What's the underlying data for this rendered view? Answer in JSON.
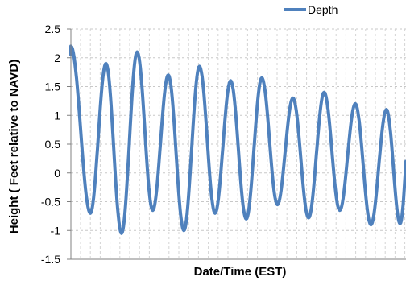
{
  "chart_data": {
    "type": "line",
    "xlabel": "Date/Time (EST)",
    "ylabel": "Height ( Feet relative to NAVD)",
    "ylim": [
      -1.5,
      2.5
    ],
    "yticks": [
      "2.5",
      "2",
      "1.5",
      "1",
      "0.5",
      "0",
      "-0.5",
      "-1",
      "-1.5"
    ],
    "grid": true,
    "legend_position": "top-right",
    "x_tick_labels_shown": false,
    "series": [
      {
        "name": "Depth",
        "color": "#4F81BD",
        "extrema": [
          [
            0.0,
            2.2
          ],
          [
            1.0,
            -0.7
          ],
          [
            1.8,
            1.9
          ],
          [
            2.6,
            -1.05
          ],
          [
            3.4,
            2.1
          ],
          [
            4.2,
            -0.65
          ],
          [
            5.0,
            1.7
          ],
          [
            5.8,
            -1.0
          ],
          [
            6.6,
            1.85
          ],
          [
            7.4,
            -0.7
          ],
          [
            8.2,
            1.6
          ],
          [
            9.0,
            -0.8
          ],
          [
            9.8,
            1.65
          ],
          [
            10.6,
            -0.55
          ],
          [
            11.4,
            1.3
          ],
          [
            12.2,
            -0.78
          ],
          [
            13.0,
            1.4
          ],
          [
            13.8,
            -0.65
          ],
          [
            14.6,
            1.2
          ],
          [
            15.4,
            -0.9
          ],
          [
            16.2,
            1.1
          ],
          [
            16.9,
            -0.88
          ]
        ]
      }
    ]
  }
}
